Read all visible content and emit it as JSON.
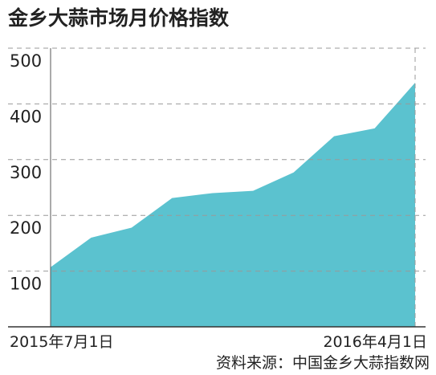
{
  "chart_data": {
    "type": "area",
    "title": "金乡大蒜市场月价格指数",
    "categories": [
      "2015年7月1日",
      null,
      null,
      null,
      null,
      null,
      null,
      null,
      null,
      "2016年4月1日"
    ],
    "values": [
      107,
      160,
      178,
      231,
      240,
      244,
      277,
      342,
      356,
      438
    ],
    "color": "#5bc2cf",
    "ylim": [
      0,
      500
    ],
    "yticks": [
      100,
      200,
      300,
      400,
      500
    ],
    "grid": true,
    "source": "资料来源：中国金乡大蒜指数网"
  }
}
